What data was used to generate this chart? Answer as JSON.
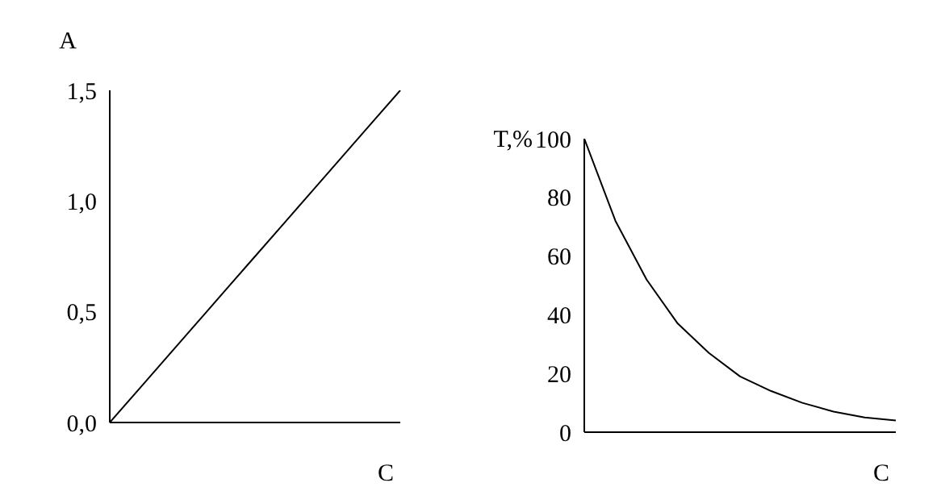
{
  "chart_data": [
    {
      "type": "line",
      "ylabel": "A",
      "xlabel": "C",
      "categories": [
        null,
        null,
        null,
        null,
        null,
        null,
        null,
        null,
        null,
        null,
        null
      ],
      "ylim": [
        0,
        1.5
      ],
      "yticks": [
        {
          "value": 0,
          "label": "0,0"
        },
        {
          "value": 0.5,
          "label": "0,5"
        },
        {
          "value": 1,
          "label": "1,0"
        },
        {
          "value": 1.5,
          "label": "1,5"
        }
      ],
      "tick_labels": "y",
      "grid": false,
      "legend": false,
      "marker": "none",
      "line_style": "solid",
      "series": [
        {
          "color": "#000000",
          "values": [
            0,
            0.15,
            0.3,
            0.45,
            0.6,
            0.75,
            0.9,
            1.05,
            1.2,
            1.35,
            1.5
          ]
        }
      ]
    },
    {
      "type": "line",
      "ylabel": "T,%",
      "xlabel": "C",
      "categories": [
        null,
        null,
        null,
        null,
        null,
        null,
        null,
        null,
        null,
        null,
        null
      ],
      "ylim": [
        0,
        100
      ],
      "yticks": [
        0,
        20,
        40,
        60,
        80,
        100
      ],
      "tick_labels": "y",
      "grid": false,
      "legend": false,
      "marker": "none",
      "line_style": "solid",
      "series": [
        {
          "color": "#000000",
          "values": [
            100,
            72,
            52,
            37,
            27,
            19,
            14,
            10,
            7,
            5,
            4
          ]
        }
      ]
    }
  ]
}
